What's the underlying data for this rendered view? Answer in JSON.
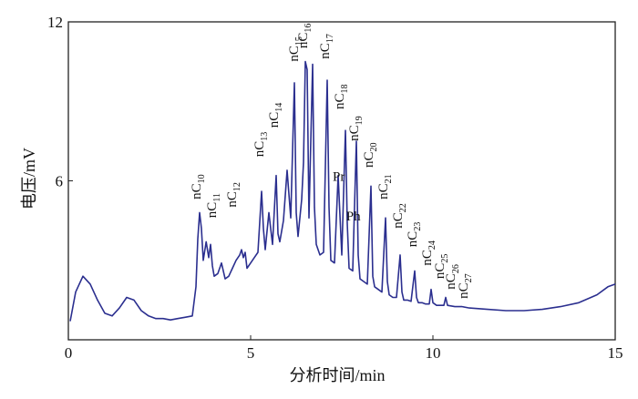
{
  "chart_data": {
    "type": "line",
    "title": "",
    "xlabel": "分析时间/min",
    "ylabel": "电压/mV",
    "xlim": [
      0,
      15
    ],
    "ylim": [
      0,
      12
    ],
    "x_ticks": [
      "0",
      "5",
      "10",
      "15"
    ],
    "y_ticks": [
      "6",
      "12"
    ],
    "grid": false,
    "line_color": "#2b2f8f",
    "series": [
      {
        "x": [
          0.05,
          0.2,
          0.4,
          0.6,
          0.8,
          1.0,
          1.2,
          1.4,
          1.6,
          1.8,
          2.0,
          2.2,
          2.4,
          2.6,
          2.8,
          3.0,
          3.2,
          3.4,
          3.5,
          3.55,
          3.6,
          3.65,
          3.7,
          3.78,
          3.85,
          3.9,
          3.95,
          4.0,
          4.1,
          4.2,
          4.3,
          4.4,
          4.5,
          4.6,
          4.7,
          4.75,
          4.8,
          4.85,
          4.9,
          5.0,
          5.1,
          5.2,
          5.3,
          5.35,
          5.4,
          5.5,
          5.6,
          5.7,
          5.75,
          5.8,
          5.9,
          6.0,
          6.1,
          6.2,
          6.25,
          6.3,
          6.4,
          6.45,
          6.5,
          6.55,
          6.6,
          6.7,
          6.75,
          6.8,
          6.9,
          7.0,
          7.1,
          7.15,
          7.2,
          7.3,
          7.4,
          7.5,
          7.6,
          7.65,
          7.7,
          7.8,
          7.9,
          7.95,
          8.0,
          8.1,
          8.2,
          8.3,
          8.35,
          8.4,
          8.5,
          8.6,
          8.7,
          8.75,
          8.8,
          8.9,
          9.0,
          9.1,
          9.15,
          9.2,
          9.3,
          9.4,
          9.5,
          9.55,
          9.6,
          9.7,
          9.8,
          9.9,
          9.95,
          10.0,
          10.1,
          10.2,
          10.3,
          10.35,
          10.4,
          10.6,
          10.8,
          11.0,
          11.5,
          12.0,
          12.5,
          13.0,
          13.5,
          14.0,
          14.5,
          14.8,
          15.0
        ],
        "y": [
          0.7,
          1.8,
          2.4,
          2.1,
          1.5,
          1.0,
          0.9,
          1.2,
          1.6,
          1.5,
          1.1,
          0.9,
          0.8,
          0.8,
          0.75,
          0.8,
          0.85,
          0.9,
          2.0,
          3.8,
          4.8,
          4.2,
          3.0,
          3.7,
          3.1,
          3.6,
          2.8,
          2.4,
          2.5,
          2.9,
          2.3,
          2.4,
          2.7,
          3.0,
          3.2,
          3.4,
          3.1,
          3.3,
          2.7,
          2.9,
          3.1,
          3.3,
          5.6,
          4.2,
          3.4,
          4.8,
          3.6,
          6.2,
          4.0,
          3.7,
          4.5,
          6.4,
          4.6,
          9.7,
          4.8,
          3.9,
          5.3,
          6.7,
          10.5,
          10.2,
          4.6,
          10.4,
          5.0,
          3.6,
          3.2,
          3.3,
          9.8,
          5.0,
          3.0,
          2.9,
          6.2,
          3.2,
          7.9,
          4.4,
          2.7,
          2.6,
          7.5,
          3.2,
          2.3,
          2.2,
          2.1,
          5.8,
          2.4,
          2.0,
          1.9,
          1.8,
          4.6,
          2.2,
          1.7,
          1.6,
          1.6,
          3.2,
          1.8,
          1.5,
          1.5,
          1.45,
          2.6,
          1.6,
          1.4,
          1.4,
          1.35,
          1.35,
          1.9,
          1.4,
          1.3,
          1.3,
          1.3,
          1.6,
          1.3,
          1.25,
          1.25,
          1.2,
          1.15,
          1.1,
          1.1,
          1.15,
          1.25,
          1.4,
          1.7,
          2.0,
          2.1
        ]
      }
    ],
    "peak_labels": [
      {
        "text": "nC",
        "sub": "10",
        "x": 3.62,
        "y": 5.3
      },
      {
        "text": "nC",
        "sub": "11",
        "x": 4.05,
        "y": 4.6
      },
      {
        "text": "nC",
        "sub": "12",
        "x": 4.6,
        "y": 5.0
      },
      {
        "text": "nC",
        "sub": "13",
        "x": 5.35,
        "y": 6.9
      },
      {
        "text": "nC",
        "sub": "14",
        "x": 5.75,
        "y": 8.0
      },
      {
        "text": "nC",
        "sub": "15",
        "x": 6.3,
        "y": 10.5
      },
      {
        "text": "nC",
        "sub": "16",
        "x": 6.55,
        "y": 11.0
      },
      {
        "text": "nC",
        "sub": "17",
        "x": 7.15,
        "y": 10.6
      },
      {
        "text": "nC",
        "sub": "18",
        "x": 7.55,
        "y": 8.7
      },
      {
        "text": "nC",
        "sub": "19",
        "x": 7.95,
        "y": 7.5
      },
      {
        "text": "Pr",
        "sub": "",
        "x": 7.25,
        "y": 6.0
      },
      {
        "text": "Ph",
        "sub": "",
        "x": 7.62,
        "y": 4.5
      },
      {
        "text": "nC",
        "sub": "20",
        "x": 8.35,
        "y": 6.5
      },
      {
        "text": "nC",
        "sub": "21",
        "x": 8.75,
        "y": 5.3
      },
      {
        "text": "nC",
        "sub": "22",
        "x": 9.15,
        "y": 4.2
      },
      {
        "text": "nC",
        "sub": "23",
        "x": 9.55,
        "y": 3.5
      },
      {
        "text": "nC",
        "sub": "24",
        "x": 9.95,
        "y": 2.8
      },
      {
        "text": "nC",
        "sub": "25",
        "x": 10.3,
        "y": 2.3
      },
      {
        "text": "nC",
        "sub": "26",
        "x": 10.6,
        "y": 1.9
      },
      {
        "text": "nC",
        "sub": "27",
        "x": 10.95,
        "y": 1.55
      }
    ]
  }
}
